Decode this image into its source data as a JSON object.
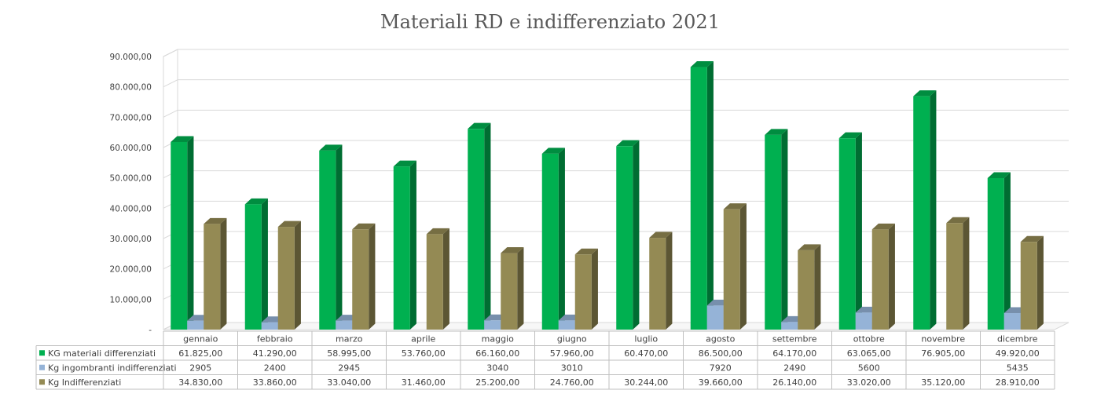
{
  "chart_data": {
    "type": "bar",
    "title": "Materiali RD e indifferenziato 2021",
    "categories": [
      "gennaio",
      "febbraio",
      "marzo",
      "aprile",
      "maggio",
      "giugno",
      "luglio",
      "agosto",
      "settembre",
      "ottobre",
      "novembre",
      "dicembre"
    ],
    "ylim": [
      0,
      90000
    ],
    "ytick_values": [
      0,
      10000,
      20000,
      30000,
      40000,
      50000,
      60000,
      70000,
      80000,
      90000
    ],
    "ytick_labels": [
      "-",
      "10.000,00",
      "20.000,00",
      "30.000,00",
      "40.000,00",
      "50.000,00",
      "60.000,00",
      "70.000,00",
      "80.000,00",
      "90.000,00"
    ],
    "grid": true,
    "legend": "data-table",
    "style": "3d-clustered-column",
    "series": [
      {
        "name": "KG materiali differenziati",
        "color": "#00B050",
        "values": [
          61825,
          41290,
          58995,
          53760,
          66160,
          57960,
          60470,
          86500,
          64170,
          63065,
          76905,
          49920
        ],
        "labels": [
          "61.825,00",
          "41.290,00",
          "58.995,00",
          "53.760,00",
          "66.160,00",
          "57.960,00",
          "60.470,00",
          "86.500,00",
          "64.170,00",
          "63.065,00",
          "76.905,00",
          "49.920,00"
        ]
      },
      {
        "name": "Kg ingombranti indifferenziati",
        "color": "#95B3D7",
        "values": [
          2905,
          2400,
          2945,
          null,
          3040,
          3010,
          null,
          7920,
          2490,
          5600,
          null,
          5435
        ],
        "labels": [
          "2905",
          "2400",
          "2945",
          "",
          "3040",
          "3010",
          "",
          "7920",
          "2490",
          "5600",
          "",
          "5435"
        ]
      },
      {
        "name": "Kg Indifferenziati",
        "color": "#948A54",
        "values": [
          34830,
          33860,
          33040,
          31460,
          25200,
          24760,
          30244,
          39660,
          26140,
          33020,
          35120,
          28910
        ],
        "labels": [
          "34.830,00",
          "33.860,00",
          "33.040,00",
          "31.460,00",
          "25.200,00",
          "24.760,00",
          "30.244,00",
          "39.660,00",
          "26.140,00",
          "33.020,00",
          "35.120,00",
          "28.910,00"
        ]
      }
    ]
  }
}
